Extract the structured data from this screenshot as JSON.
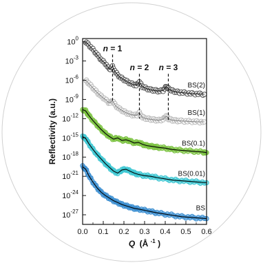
{
  "chart_data": {
    "type": "scatter",
    "title": "",
    "xlabel_var": "Q",
    "xlabel_unit": "(Å",
    "xlabel_exp": "-1",
    "xlabel_close": ")",
    "ylabel": "Reflectivity (a.u.)",
    "xlim": [
      0.0,
      0.6
    ],
    "ylim_exp": [
      -28.5,
      0.5
    ],
    "y_scale": "log",
    "x_ticks": [
      "0.0",
      "0.1",
      "0.2",
      "0.3",
      "0.4",
      "0.5",
      "0.6"
    ],
    "x_tick_values": [
      0.0,
      0.1,
      0.2,
      0.3,
      0.4,
      0.5,
      0.6
    ],
    "y_tick_exponents": [
      0,
      -3,
      -6,
      -9,
      -12,
      -15,
      -18,
      -21,
      -24,
      -27
    ],
    "y_tick_base": "10",
    "y_tick_labels": [
      "0",
      "-3",
      "-6",
      "-9",
      "-12",
      "-15",
      "-18",
      "-21",
      "-24",
      "-27"
    ],
    "grid": false,
    "series": [
      {
        "name": "BS(2)",
        "color": "#555555",
        "fit_color": "#222222",
        "x": [
          0.015,
          0.03,
          0.05,
          0.07,
          0.09,
          0.11,
          0.13,
          0.145,
          0.16,
          0.18,
          0.2,
          0.22,
          0.24,
          0.26,
          0.275,
          0.29,
          0.31,
          0.33,
          0.35,
          0.37,
          0.39,
          0.405,
          0.415,
          0.43,
          0.45,
          0.47,
          0.5,
          0.53,
          0.56,
          0.59
        ],
        "log_y": [
          0,
          -0.5,
          -1.2,
          -2.0,
          -2.8,
          -3.4,
          -4.3,
          -3.9,
          -4.8,
          -5.5,
          -5.9,
          -6.3,
          -6.6,
          -6.8,
          -6.3,
          -7.0,
          -7.3,
          -7.5,
          -7.6,
          -7.7,
          -7.6,
          -7.0,
          -7.3,
          -7.6,
          -7.8,
          -7.9,
          -8.0,
          -8.1,
          -8.15,
          -8.2
        ]
      },
      {
        "name": "BS(1)",
        "color": "#b8b8b8",
        "fit_color": "#8a8a8a",
        "x": [
          0.015,
          0.03,
          0.05,
          0.07,
          0.09,
          0.11,
          0.13,
          0.145,
          0.16,
          0.18,
          0.2,
          0.22,
          0.24,
          0.26,
          0.275,
          0.29,
          0.31,
          0.33,
          0.35,
          0.37,
          0.39,
          0.405,
          0.415,
          0.43,
          0.45,
          0.47,
          0.5,
          0.53,
          0.56,
          0.59
        ],
        "log_y": [
          -6.0,
          -6.5,
          -7.2,
          -7.9,
          -8.5,
          -9.0,
          -9.6,
          -9.2,
          -10.0,
          -10.5,
          -10.9,
          -11.2,
          -11.4,
          -11.5,
          -11.1,
          -11.8,
          -12.0,
          -12.1,
          -12.2,
          -12.25,
          -12.1,
          -11.6,
          -12.0,
          -12.2,
          -12.3,
          -12.35,
          -12.4,
          -12.45,
          -12.5,
          -12.5
        ]
      },
      {
        "name": "BS(0.1)",
        "color": "#7cc242",
        "fit_color": "#000000",
        "x": [
          0.0,
          0.015,
          0.03,
          0.05,
          0.07,
          0.09,
          0.11,
          0.13,
          0.15,
          0.17,
          0.19,
          0.21,
          0.23,
          0.25,
          0.27,
          0.29,
          0.31,
          0.33,
          0.35,
          0.37,
          0.4,
          0.43,
          0.46,
          0.5,
          0.54,
          0.58,
          0.6
        ],
        "log_y": [
          -10.6,
          -10.8,
          -11.5,
          -12.3,
          -13.0,
          -13.7,
          -14.3,
          -14.8,
          -15.2,
          -15.0,
          -15.4,
          -15.3,
          -15.5,
          -15.8,
          -15.7,
          -16.0,
          -16.2,
          -16.3,
          -16.4,
          -16.5,
          -16.6,
          -16.8,
          -16.9,
          -17.0,
          -17.1,
          -17.2,
          -17.3
        ]
      },
      {
        "name": "BS(0.01)",
        "color": "#3cc6d2",
        "fit_color": "#000000",
        "x": [
          0.0,
          0.015,
          0.03,
          0.05,
          0.07,
          0.09,
          0.11,
          0.13,
          0.15,
          0.17,
          0.19,
          0.21,
          0.23,
          0.25,
          0.27,
          0.3,
          0.33,
          0.36,
          0.4,
          0.44,
          0.48,
          0.52,
          0.56,
          0.6
        ],
        "log_y": [
          -14.8,
          -15.1,
          -15.9,
          -16.8,
          -17.6,
          -18.3,
          -19.0,
          -19.6,
          -20.2,
          -20.5,
          -20.0,
          -19.9,
          -20.2,
          -20.5,
          -20.7,
          -20.9,
          -21.0,
          -21.2,
          -21.4,
          -21.6,
          -21.7,
          -21.8,
          -21.9,
          -22.0
        ]
      },
      {
        "name": "BS",
        "color": "#3d8fd1",
        "fit_color": "#000000",
        "x": [
          0.0,
          0.015,
          0.03,
          0.05,
          0.07,
          0.09,
          0.11,
          0.13,
          0.15,
          0.17,
          0.19,
          0.21,
          0.23,
          0.25,
          0.27,
          0.3,
          0.33,
          0.36,
          0.4,
          0.44,
          0.48,
          0.52,
          0.56,
          0.6
        ],
        "log_y": [
          -19.5,
          -19.9,
          -20.9,
          -21.9,
          -22.8,
          -23.5,
          -24.0,
          -24.4,
          -24.8,
          -25.1,
          -25.4,
          -25.6,
          -25.8,
          -26.0,
          -26.1,
          -26.3,
          -26.5,
          -26.7,
          -26.9,
          -27.1,
          -27.3,
          -27.4,
          -27.5,
          -27.6
        ]
      }
    ],
    "annotations": [
      {
        "label_n": "n",
        "label_eq": " = 1",
        "x": 0.145,
        "log_y_top": -2.0,
        "log_y_bottom": -9.3
      },
      {
        "label_n": "n",
        "label_eq": " = 2",
        "x": 0.275,
        "log_y_top": -5.0,
        "log_y_bottom": -12.0
      },
      {
        "label_n": "n",
        "label_eq": " = 3",
        "x": 0.415,
        "log_y_top": -5.0,
        "log_y_bottom": -12.5
      }
    ]
  }
}
